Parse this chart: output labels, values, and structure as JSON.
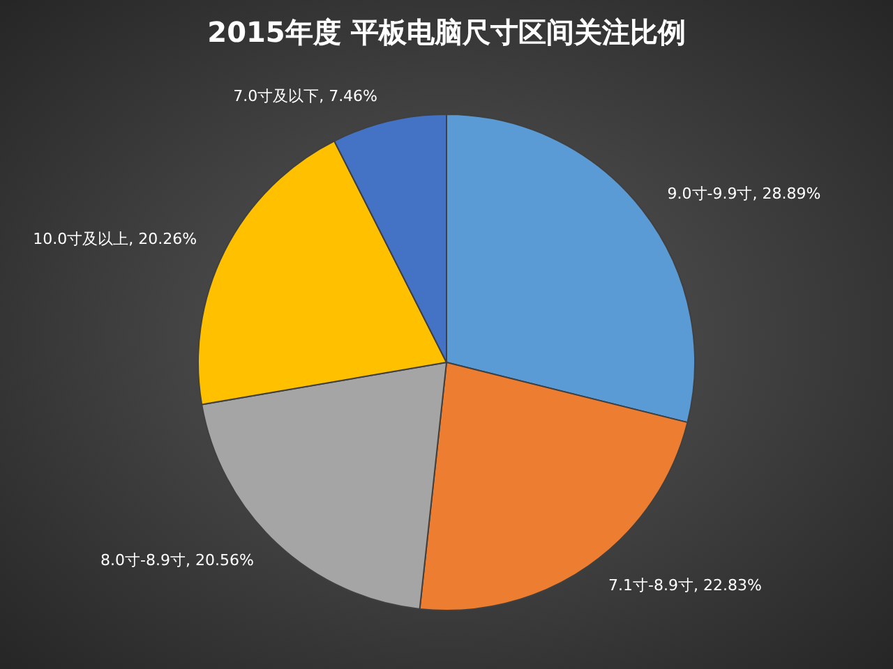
{
  "chart_data": {
    "type": "pie",
    "title": "2015年度 平板电脑尺寸区间关注比例",
    "categories": [
      "9.0寸-9.9寸",
      "7.1寸-8.9寸",
      "8.0寸-8.9寸",
      "10.0寸及以上",
      "7.0寸及以下"
    ],
    "values": [
      28.89,
      22.83,
      20.56,
      20.26,
      7.46
    ],
    "colors": [
      "#5b9bd5",
      "#ed7d31",
      "#a5a5a5",
      "#ffc000",
      "#4472c4"
    ],
    "value_labels": [
      "28.89%",
      "22.83%",
      "20.56%",
      "20.26%",
      "7.46%"
    ]
  }
}
